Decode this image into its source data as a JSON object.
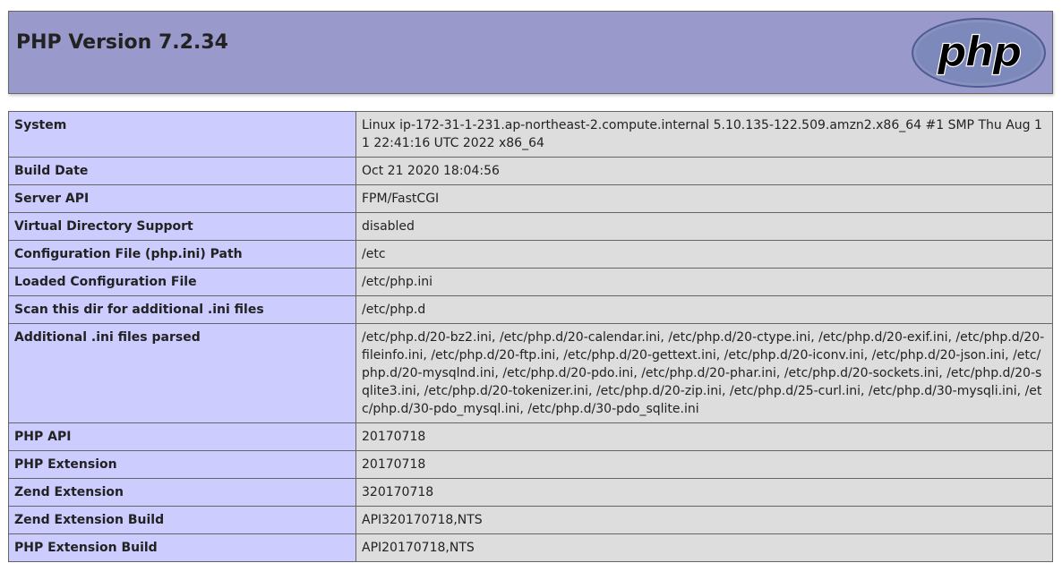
{
  "header": {
    "title": "PHP Version 7.2.34",
    "logo_text": "php"
  },
  "colors": {
    "header_bg": "#9999cc",
    "key_bg": "#ccccff",
    "value_bg": "#dddddd",
    "border": "#666666"
  },
  "rows": [
    {
      "key": "System",
      "value": "Linux ip-172-31-1-231.ap-northeast-2.compute.internal 5.10.135-122.509.amzn2.x86_64 #1 SMP Thu Aug 11 22:41:16 UTC 2022 x86_64"
    },
    {
      "key": "Build Date",
      "value": "Oct 21 2020 18:04:56"
    },
    {
      "key": "Server API",
      "value": "FPM/FastCGI"
    },
    {
      "key": "Virtual Directory Support",
      "value": "disabled"
    },
    {
      "key": "Configuration File (php.ini) Path",
      "value": "/etc"
    },
    {
      "key": "Loaded Configuration File",
      "value": "/etc/php.ini"
    },
    {
      "key": "Scan this dir for additional .ini files",
      "value": "/etc/php.d"
    },
    {
      "key": "Additional .ini files parsed",
      "value": "/etc/php.d/20-bz2.ini, /etc/php.d/20-calendar.ini, /etc/php.d/20-ctype.ini, /etc/php.d/20-exif.ini, /etc/php.d/20-fileinfo.ini, /etc/php.d/20-ftp.ini, /etc/php.d/20-gettext.ini, /etc/php.d/20-iconv.ini, /etc/php.d/20-json.ini, /etc/php.d/20-mysqlnd.ini, /etc/php.d/20-pdo.ini, /etc/php.d/20-phar.ini, /etc/php.d/20-sockets.ini, /etc/php.d/20-sqlite3.ini, /etc/php.d/20-tokenizer.ini, /etc/php.d/20-zip.ini, /etc/php.d/25-curl.ini, /etc/php.d/30-mysqli.ini, /etc/php.d/30-pdo_mysql.ini, /etc/php.d/30-pdo_sqlite.ini"
    },
    {
      "key": "PHP API",
      "value": "20170718"
    },
    {
      "key": "PHP Extension",
      "value": "20170718"
    },
    {
      "key": "Zend Extension",
      "value": "320170718"
    },
    {
      "key": "Zend Extension Build",
      "value": "API320170718,NTS"
    },
    {
      "key": "PHP Extension Build",
      "value": "API20170718,NTS"
    }
  ]
}
